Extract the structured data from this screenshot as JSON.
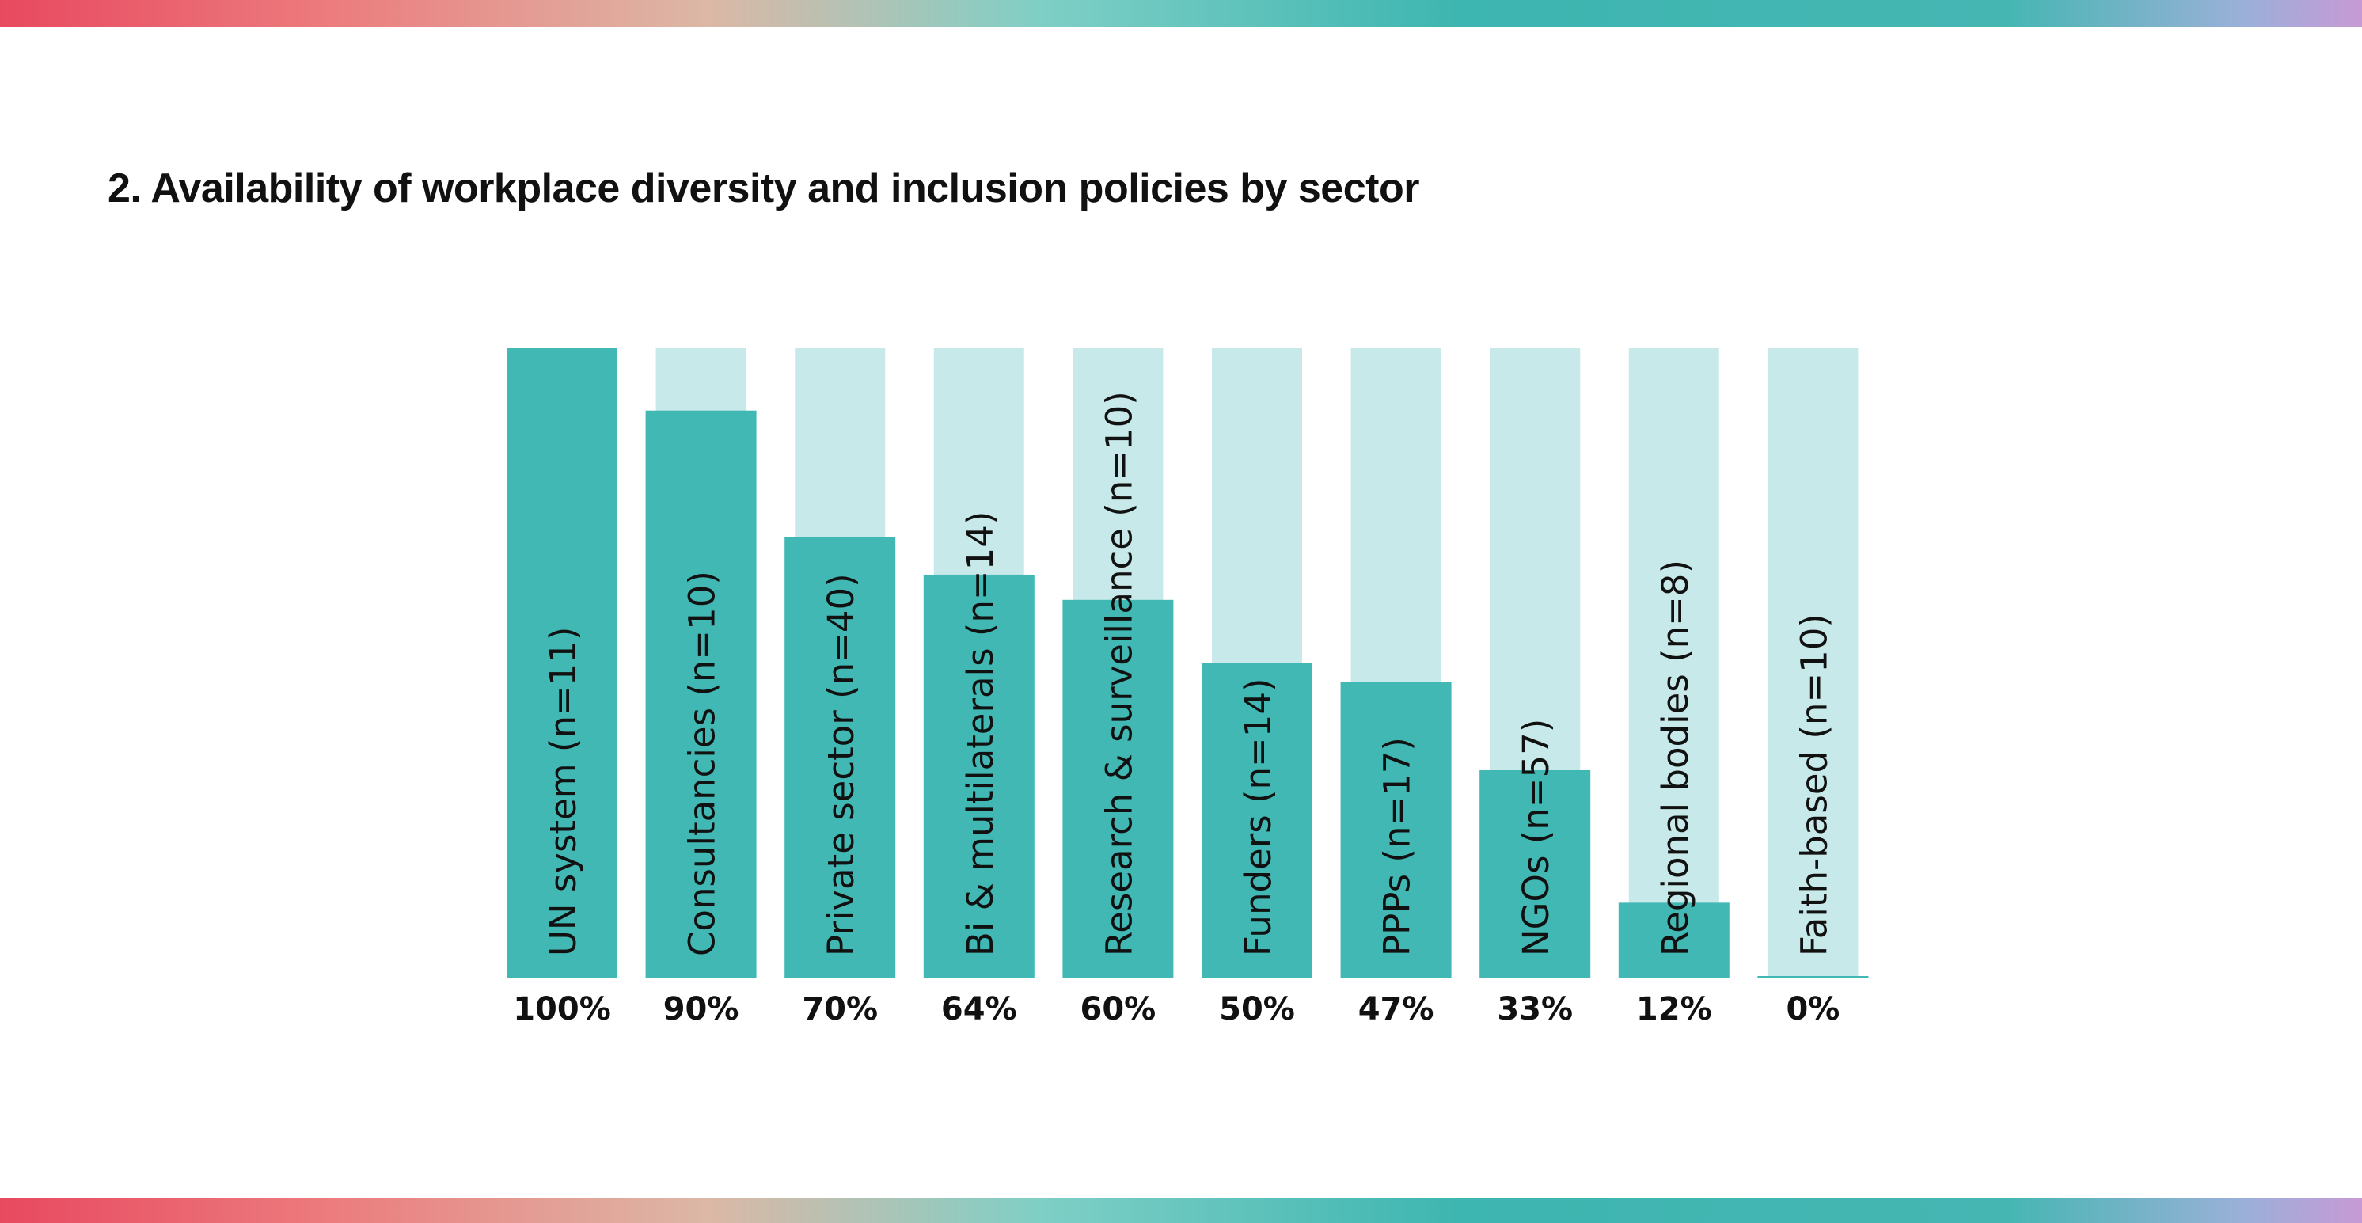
{
  "title": "2. Availability of workplace diversity and inclusion policies by sector",
  "colors": {
    "bar": "#41b8b4",
    "track": "#c8e9e9",
    "text": "#111111",
    "stripe_start": "#e8495f",
    "stripe_mid": "#3db5b0",
    "stripe_end": "#c79ad6"
  },
  "chart_data": {
    "type": "bar",
    "title": "2. Availability of workplace diversity and inclusion policies by sector",
    "categories": [
      "UN system (n=11)",
      "Consultancies (n=10)",
      "Private sector (n=40)",
      "Bi & multilaterals (n=14)",
      "Research & surveillance (n=10)",
      "Funders (n=14)",
      "PPPs (n=17)",
      "NGOs (n=57)",
      "Regional bodies (n=8)",
      "Faith-based (n=10)"
    ],
    "values": [
      100,
      90,
      70,
      64,
      60,
      50,
      47,
      33,
      12,
      0
    ],
    "value_labels": [
      "100%",
      "90%",
      "70%",
      "64%",
      "60%",
      "50%",
      "47%",
      "33%",
      "12%",
      "0%"
    ],
    "ylim": [
      0,
      100
    ],
    "unit": "%",
    "grid": false,
    "legend": "none",
    "xlabel": "",
    "ylabel": ""
  }
}
